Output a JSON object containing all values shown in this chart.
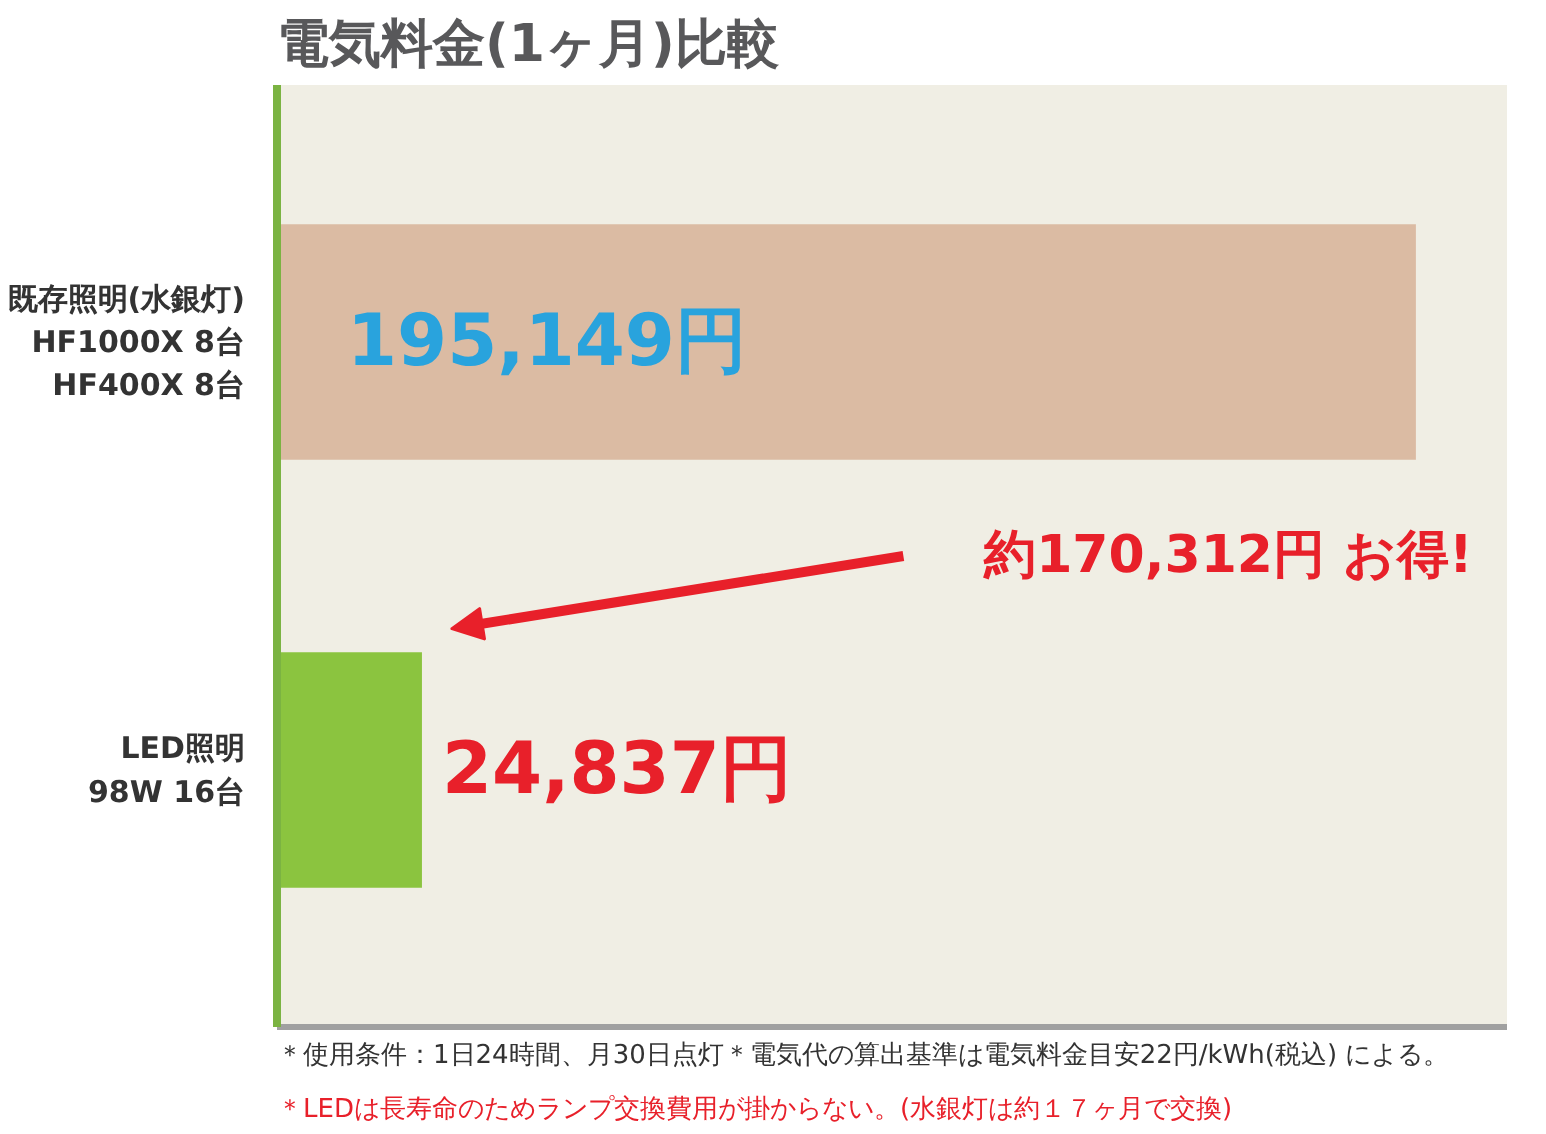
{
  "chart_data": {
    "type": "bar",
    "orientation": "horizontal",
    "title": "電気料金(1ヶ月)比較",
    "categories": [
      "既存照明(水銀灯)\nHF1000X 8台\nHF400X 8台",
      "LED照明\n98W 16台"
    ],
    "values": [
      195149,
      24837
    ],
    "colors": [
      "#dbbba3",
      "#8bc43f"
    ],
    "value_labels": [
      "195,149円",
      "24,837円"
    ],
    "tick_labels": "y",
    "annotations": [
      "約170,312円 お得!",
      "＊使用条件：1日24時間、月30日点灯＊電気代の算出基準は電気料金目安22円/kWh(税込) による。",
      "＊LEDは長寿命のためランプ交換費用が掛からない。(水銀灯は約１７ヶ月で交換)"
    ]
  }
}
